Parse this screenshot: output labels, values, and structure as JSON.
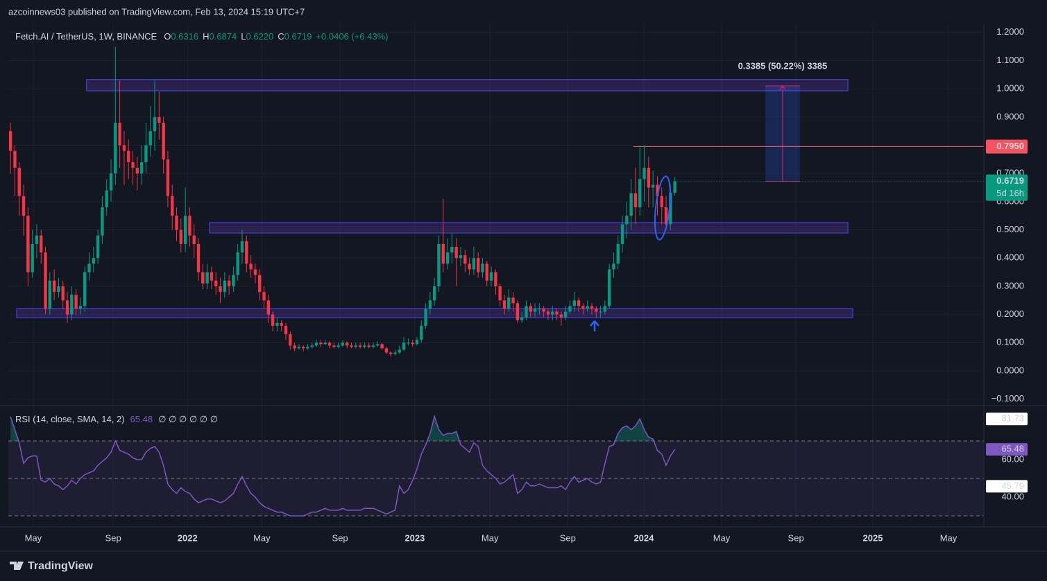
{
  "header": {
    "publisher": "azcoinnews03 published on TradingView.com, Feb 13, 2024 15:19 UTC+7",
    "brand": "TradingView"
  },
  "chart_data": [
    {
      "type": "candlestick",
      "title": "Fetch.AI / TetherUS, 1W, BINANCE",
      "ohlc": [
        {
          "key": "O",
          "value": "0.6316"
        },
        {
          "key": "H",
          "value": "0.6874"
        },
        {
          "key": "L",
          "value": "0.6220"
        },
        {
          "key": "C",
          "value": "0.6719"
        }
      ],
      "change": "+0.0406 (+6.43%)",
      "up_color": "#089981",
      "down_color": "#f23645",
      "open": [
        0.85,
        0.78,
        0.72,
        0.62,
        0.55,
        0.35,
        0.45,
        0.48,
        0.42,
        0.22,
        0.32,
        0.28,
        0.3,
        0.25,
        0.2,
        0.27,
        0.22,
        0.23,
        0.35,
        0.38,
        0.4,
        0.48,
        0.58,
        0.64,
        0.7,
        0.88,
        0.8,
        0.78,
        0.74,
        0.72,
        0.7,
        0.74,
        0.8,
        0.85,
        0.9,
        0.88,
        0.75,
        0.62,
        0.55,
        0.5,
        0.45,
        0.55,
        0.48,
        0.45,
        0.35,
        0.31,
        0.35,
        0.32,
        0.3,
        0.28,
        0.32,
        0.3,
        0.34,
        0.42,
        0.46,
        0.38,
        0.36,
        0.34,
        0.28,
        0.25,
        0.2,
        0.16,
        0.17,
        0.16,
        0.13,
        0.09,
        0.08,
        0.085,
        0.08,
        0.085,
        0.09,
        0.1,
        0.095,
        0.1,
        0.09,
        0.085,
        0.09,
        0.1,
        0.09,
        0.085,
        0.09,
        0.085,
        0.09,
        0.085,
        0.09,
        0.095,
        0.08,
        0.065,
        0.06,
        0.065,
        0.075,
        0.1,
        0.1,
        0.095,
        0.11,
        0.16,
        0.22,
        0.25,
        0.3,
        0.45,
        0.38,
        0.42,
        0.44,
        0.4,
        0.41,
        0.38,
        0.36,
        0.4,
        0.35,
        0.38,
        0.32,
        0.35,
        0.3,
        0.25,
        0.22,
        0.26,
        0.24,
        0.18,
        0.19,
        0.23,
        0.21,
        0.22,
        0.22,
        0.21,
        0.2,
        0.21,
        0.2,
        0.19,
        0.21,
        0.23,
        0.25,
        0.23,
        0.22,
        0.23,
        0.22,
        0.21,
        0.21,
        0.23,
        0.36,
        0.38,
        0.45,
        0.52,
        0.55,
        0.63,
        0.58,
        0.68,
        0.72,
        0.65,
        0.66,
        0.62,
        0.58,
        0.52,
        0.6316
      ],
      "high": [
        0.88,
        0.8,
        0.74,
        0.66,
        0.58,
        0.5,
        0.52,
        0.5,
        0.44,
        0.35,
        0.36,
        0.33,
        0.32,
        0.28,
        0.3,
        0.29,
        0.26,
        0.37,
        0.42,
        0.44,
        0.5,
        0.62,
        0.68,
        0.75,
        1.15,
        1.03,
        0.85,
        0.82,
        0.78,
        0.76,
        0.8,
        0.88,
        0.94,
        1.03,
        0.99,
        0.9,
        0.78,
        0.66,
        0.58,
        0.54,
        0.65,
        0.58,
        0.52,
        0.47,
        0.38,
        0.38,
        0.37,
        0.35,
        0.33,
        0.35,
        0.34,
        0.37,
        0.45,
        0.5,
        0.48,
        0.41,
        0.38,
        0.36,
        0.3,
        0.27,
        0.21,
        0.19,
        0.18,
        0.17,
        0.14,
        0.1,
        0.095,
        0.09,
        0.095,
        0.1,
        0.11,
        0.11,
        0.11,
        0.105,
        0.1,
        0.1,
        0.11,
        0.105,
        0.1,
        0.1,
        0.1,
        0.1,
        0.1,
        0.1,
        0.105,
        0.1,
        0.085,
        0.07,
        0.075,
        0.09,
        0.12,
        0.115,
        0.11,
        0.12,
        0.18,
        0.24,
        0.28,
        0.33,
        0.48,
        0.61,
        0.47,
        0.49,
        0.47,
        0.44,
        0.43,
        0.4,
        0.44,
        0.42,
        0.4,
        0.39,
        0.37,
        0.36,
        0.31,
        0.27,
        0.29,
        0.28,
        0.25,
        0.21,
        0.25,
        0.24,
        0.24,
        0.24,
        0.23,
        0.22,
        0.23,
        0.22,
        0.21,
        0.23,
        0.25,
        0.28,
        0.26,
        0.24,
        0.25,
        0.24,
        0.23,
        0.23,
        0.25,
        0.38,
        0.42,
        0.48,
        0.55,
        0.6,
        0.68,
        0.72,
        0.8,
        0.8,
        0.76,
        0.71,
        0.69,
        0.65,
        0.62,
        0.66,
        0.6874
      ],
      "low": [
        0.7,
        0.62,
        0.55,
        0.48,
        0.3,
        0.33,
        0.4,
        0.38,
        0.2,
        0.2,
        0.25,
        0.26,
        0.22,
        0.17,
        0.18,
        0.2,
        0.2,
        0.21,
        0.32,
        0.35,
        0.38,
        0.45,
        0.55,
        0.6,
        0.66,
        0.72,
        0.66,
        0.68,
        0.66,
        0.64,
        0.66,
        0.7,
        0.76,
        0.78,
        0.82,
        0.7,
        0.58,
        0.5,
        0.46,
        0.42,
        0.42,
        0.44,
        0.4,
        0.32,
        0.29,
        0.29,
        0.29,
        0.27,
        0.24,
        0.26,
        0.27,
        0.28,
        0.32,
        0.38,
        0.35,
        0.33,
        0.31,
        0.25,
        0.22,
        0.17,
        0.14,
        0.14,
        0.14,
        0.11,
        0.075,
        0.07,
        0.075,
        0.07,
        0.075,
        0.08,
        0.085,
        0.085,
        0.09,
        0.08,
        0.08,
        0.08,
        0.085,
        0.08,
        0.08,
        0.08,
        0.08,
        0.08,
        0.08,
        0.08,
        0.085,
        0.075,
        0.06,
        0.05,
        0.055,
        0.06,
        0.07,
        0.09,
        0.085,
        0.09,
        0.1,
        0.15,
        0.2,
        0.23,
        0.28,
        0.35,
        0.36,
        0.38,
        0.3,
        0.37,
        0.35,
        0.34,
        0.34,
        0.33,
        0.33,
        0.3,
        0.3,
        0.27,
        0.23,
        0.2,
        0.21,
        0.21,
        0.17,
        0.17,
        0.18,
        0.19,
        0.19,
        0.2,
        0.19,
        0.18,
        0.18,
        0.18,
        0.16,
        0.18,
        0.2,
        0.21,
        0.21,
        0.2,
        0.21,
        0.2,
        0.19,
        0.19,
        0.2,
        0.22,
        0.33,
        0.36,
        0.42,
        0.47,
        0.5,
        0.52,
        0.55,
        0.6,
        0.58,
        0.58,
        0.55,
        0.52,
        0.5,
        0.5,
        0.622
      ],
      "close": [
        0.78,
        0.72,
        0.62,
        0.55,
        0.35,
        0.45,
        0.48,
        0.42,
        0.22,
        0.32,
        0.28,
        0.3,
        0.25,
        0.2,
        0.27,
        0.22,
        0.23,
        0.35,
        0.38,
        0.4,
        0.48,
        0.58,
        0.64,
        0.7,
        0.88,
        0.8,
        0.78,
        0.74,
        0.72,
        0.7,
        0.74,
        0.8,
        0.85,
        0.9,
        0.88,
        0.75,
        0.62,
        0.55,
        0.5,
        0.45,
        0.55,
        0.48,
        0.45,
        0.35,
        0.31,
        0.35,
        0.32,
        0.3,
        0.28,
        0.32,
        0.3,
        0.34,
        0.42,
        0.46,
        0.38,
        0.36,
        0.34,
        0.28,
        0.25,
        0.2,
        0.16,
        0.17,
        0.16,
        0.13,
        0.09,
        0.08,
        0.085,
        0.08,
        0.085,
        0.09,
        0.1,
        0.095,
        0.1,
        0.09,
        0.085,
        0.09,
        0.1,
        0.09,
        0.085,
        0.09,
        0.085,
        0.09,
        0.085,
        0.09,
        0.095,
        0.08,
        0.065,
        0.06,
        0.065,
        0.075,
        0.1,
        0.1,
        0.095,
        0.11,
        0.16,
        0.22,
        0.25,
        0.3,
        0.45,
        0.38,
        0.42,
        0.44,
        0.4,
        0.41,
        0.38,
        0.36,
        0.4,
        0.35,
        0.38,
        0.32,
        0.35,
        0.3,
        0.25,
        0.22,
        0.26,
        0.24,
        0.18,
        0.19,
        0.23,
        0.21,
        0.22,
        0.22,
        0.21,
        0.2,
        0.21,
        0.2,
        0.19,
        0.21,
        0.23,
        0.25,
        0.23,
        0.22,
        0.23,
        0.22,
        0.21,
        0.21,
        0.23,
        0.36,
        0.38,
        0.45,
        0.52,
        0.55,
        0.63,
        0.58,
        0.68,
        0.72,
        0.65,
        0.66,
        0.62,
        0.58,
        0.52,
        0.6316,
        0.6719
      ],
      "last_label": "0.6719",
      "countdown": "5d 16h",
      "xlim": [
        -0.5,
        222.7
      ],
      "xticks": [
        {
          "value": 5.2,
          "label": "May"
        },
        {
          "value": 23.5,
          "label": "Sep"
        },
        {
          "value": 40.5,
          "label": "2022"
        },
        {
          "value": 57.5,
          "label": "May"
        },
        {
          "value": 75.4,
          "label": "Sep"
        },
        {
          "value": 92.5,
          "label": "2023"
        },
        {
          "value": 109.7,
          "label": "May"
        },
        {
          "value": 127.5,
          "label": "Sep"
        },
        {
          "value": 144.9,
          "label": "2024"
        },
        {
          "value": 162.7,
          "label": "May"
        },
        {
          "value": 179.7,
          "label": "Sep"
        },
        {
          "value": 197.3,
          "label": "2025"
        },
        {
          "value": 214.6,
          "label": "May"
        }
      ],
      "ylim": [
        -0.123,
        1.229
      ],
      "yticks": [
        {
          "value": 1.2,
          "label": "1.2000"
        },
        {
          "value": 1.1,
          "label": "1.1000"
        },
        {
          "value": 1,
          "label": "1.0000"
        },
        {
          "value": 0.9,
          "label": "0.9000"
        },
        {
          "value": 0.8,
          "label": "0.8000"
        },
        {
          "value": 0.7,
          "label": "0.7000"
        },
        {
          "value": 0.6,
          "label": "0.6000"
        },
        {
          "value": 0.5,
          "label": "0.5000"
        },
        {
          "value": 0.4,
          "label": "0.4000"
        },
        {
          "value": 0.3,
          "label": "0.3000"
        },
        {
          "value": 0.2,
          "label": "0.2000"
        },
        {
          "value": 0.1,
          "label": "0.1000"
        },
        {
          "value": 0,
          "label": "0.0000"
        },
        {
          "value": -0.1,
          "label": "−0.1000"
        }
      ],
      "grid": true,
      "zones": [
        {
          "top": 1.033,
          "bottom": 0.993,
          "start": 17.4,
          "end": 191.6
        },
        {
          "top": 0.526,
          "bottom": 0.489,
          "start": 45.5,
          "end": 191.6
        },
        {
          "top": 0.221,
          "bottom": 0.189,
          "start": 1.4,
          "end": 192.7
        }
      ],
      "price_line": {
        "value": 0.795,
        "label": "0.7950",
        "start": 142.5
      },
      "measure": {
        "label": "0.3385 (50.22%) 3385",
        "from": 0.6719,
        "to": 1.0104,
        "start": 172.7,
        "end": 180.6
      }
    },
    {
      "type": "line",
      "title": "RSI (14, close, SMA, 14, 2)",
      "legend_value": "65.48",
      "legend_extra": "∅ ∅ ∅ ∅ ∅ ∅",
      "color": "#7e57c2",
      "values": [
        83,
        76,
        69,
        58,
        61,
        62,
        62,
        49,
        48,
        50,
        47,
        46,
        44,
        46,
        49,
        47,
        50,
        52,
        53,
        54,
        57,
        59,
        61,
        64,
        70,
        65,
        64,
        63,
        61,
        60,
        60,
        64,
        66,
        67,
        64,
        57,
        47,
        44,
        42,
        45,
        43,
        42,
        39,
        37,
        38,
        39,
        39,
        38,
        37,
        38,
        40,
        42,
        47,
        51,
        46,
        42,
        40,
        37,
        35,
        34,
        33,
        32,
        32,
        31,
        30,
        30,
        30,
        30,
        31,
        32,
        32,
        33,
        34,
        33,
        33,
        33,
        34,
        33,
        33,
        33,
        33,
        34,
        34,
        34,
        33,
        32,
        31,
        32,
        33,
        46,
        42,
        44,
        49,
        55,
        63,
        68,
        74,
        83,
        76,
        73,
        74,
        74,
        75,
        68,
        66,
        64,
        69,
        67,
        57,
        54,
        52,
        50,
        47,
        48,
        50,
        52,
        42,
        44,
        48,
        46,
        46,
        47,
        46,
        45,
        45,
        45,
        46,
        44,
        48,
        51,
        48,
        49,
        50,
        48,
        47,
        48,
        58,
        67,
        68,
        74,
        77,
        78,
        76,
        78,
        81.73,
        76,
        72,
        71,
        65,
        63,
        57,
        62,
        65.48
      ],
      "last_label": "65.48",
      "levels": [
        70,
        50,
        30
      ],
      "ylim": [
        24.1,
        87.0
      ],
      "yticks": [
        {
          "value": 60,
          "label": "60.00"
        },
        {
          "value": 40,
          "label": "40.00"
        }
      ],
      "markers": [
        {
          "value": 81.73,
          "label": "81.73"
        },
        {
          "value": 45.79,
          "label": "45.79"
        }
      ]
    }
  ]
}
